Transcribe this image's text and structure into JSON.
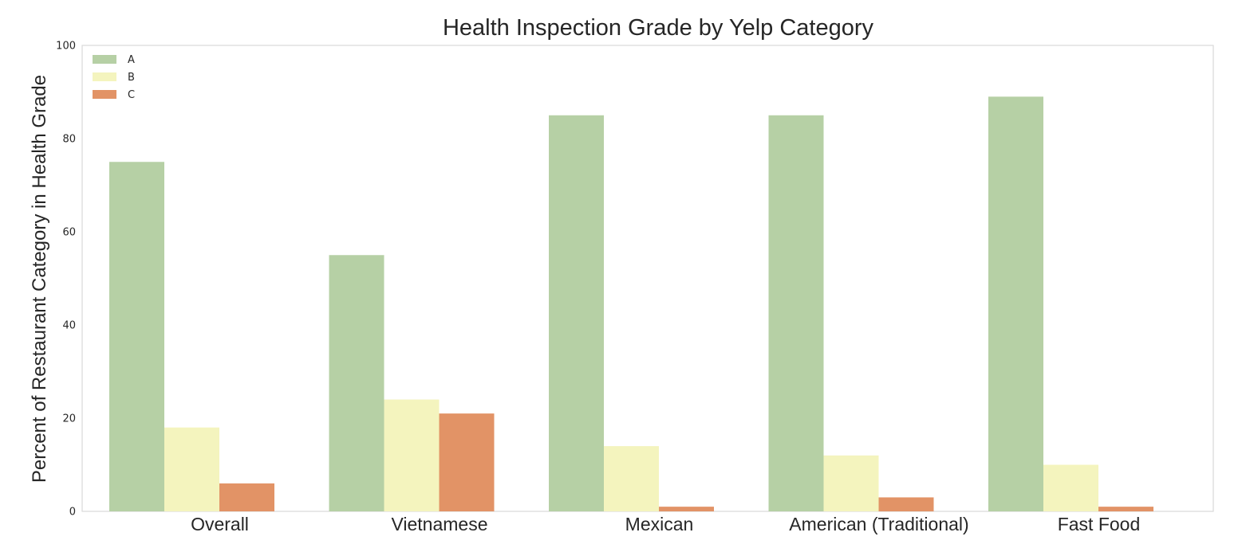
{
  "chart_data": {
    "type": "bar",
    "title": "Health Inspection Grade by Yelp Category",
    "xlabel": "",
    "ylabel": "Percent of Restaurant Category in Health Grade",
    "categories": [
      "Overall",
      "Vietnamese",
      "Mexican",
      "American (Traditional)",
      "Fast Food"
    ],
    "series": [
      {
        "name": "A",
        "color": "#b6d0a5",
        "values": [
          75,
          55,
          85,
          85,
          89
        ]
      },
      {
        "name": "B",
        "color": "#f4f4be",
        "values": [
          18,
          24,
          14,
          12,
          10
        ]
      },
      {
        "name": "C",
        "color": "#e29366",
        "values": [
          6,
          21,
          1,
          3,
          1
        ]
      }
    ],
    "ylim": [
      0,
      100
    ],
    "yticks": [
      0,
      20,
      40,
      60,
      80,
      100
    ],
    "grid": false,
    "legend_position": "top-left"
  }
}
